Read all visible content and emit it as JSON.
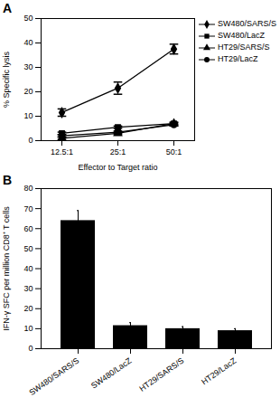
{
  "chart_data": [
    {
      "type": "line",
      "title": "A",
      "x_label": "Effector to Target ratio",
      "y_label": "% Specific lysis",
      "categories": [
        "12.5:1",
        "25:1",
        "50:1"
      ],
      "ylim": [
        0,
        50
      ],
      "yticks": [
        0,
        10,
        20,
        30,
        40,
        50
      ],
      "legend": "top-right",
      "series": [
        {
          "name": "SW480/SARS/S",
          "color": "#000000",
          "marker": "diamond",
          "line_style": "solid",
          "values": [
            11.5,
            21.5,
            37.5
          ],
          "errors": [
            1.5,
            2.5,
            2
          ]
        },
        {
          "name": "SW480/LacZ",
          "color": "#000000",
          "marker": "square",
          "line_style": "solid",
          "values": [
            3,
            5.5,
            7
          ],
          "errors": [
            0.5,
            0.5,
            0.5
          ]
        },
        {
          "name": "HT29/SARS/S",
          "color": "#000000",
          "marker": "triangle",
          "line_style": "solid",
          "values": [
            1,
            3,
            7
          ],
          "errors": [
            0.5,
            0.5,
            0.5
          ]
        },
        {
          "name": "HT29/LacZ",
          "color": "#000000",
          "marker": "circle",
          "line_style": "solid",
          "values": [
            2,
            3.5,
            6.5
          ],
          "errors": [
            0.5,
            0.5,
            0.5
          ]
        }
      ]
    },
    {
      "type": "bar",
      "title": "B",
      "y_label": "IFN-γ SFC per million CD8⁺ T cells",
      "categories": [
        "SW480/SARS/S",
        "SW480/LacZ",
        "HT29/SARS/S",
        "HT29/LacZ"
      ],
      "values": [
        64,
        11.5,
        10,
        9
      ],
      "errors": [
        5,
        1.5,
        1,
        1
      ],
      "color": "#000000",
      "ylim": [
        0,
        80
      ],
      "yticks": [
        0,
        10,
        20,
        30,
        40,
        50,
        60,
        70,
        80
      ]
    }
  ]
}
